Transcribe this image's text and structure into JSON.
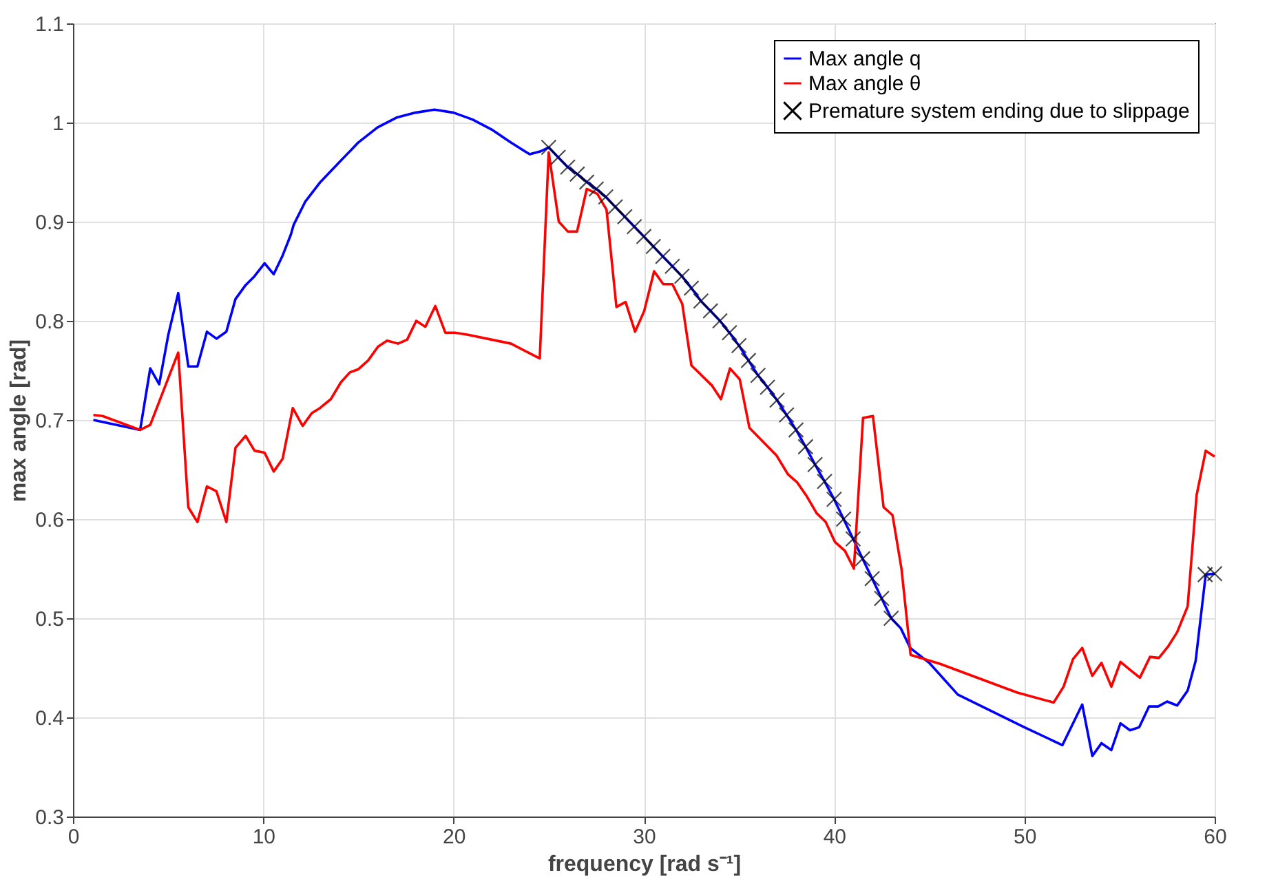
{
  "chart_data": {
    "type": "line",
    "xlabel": "frequency [rad s⁻¹]",
    "ylabel": "max angle [rad]",
    "xlim": [
      0,
      60
    ],
    "xticks": [
      0,
      10,
      20,
      30,
      40,
      50,
      60
    ],
    "ylim": [
      0.3,
      1.1
    ],
    "yticks": [
      0.3,
      0.4,
      0.5,
      0.6,
      0.7,
      0.8,
      0.9,
      1,
      1.1
    ],
    "grid": true,
    "legend": "top right",
    "series": [
      {
        "name": "Max angle q",
        "color": "#0000ff",
        "x": [
          1.07,
          3.53,
          4.06,
          4.53,
          5.01,
          5.53,
          6.06,
          6.54,
          7.04,
          7.54,
          8.06,
          8.54,
          9.07,
          9.54,
          10.07,
          10.55,
          11.02,
          11.45,
          11.6,
          12.2,
          13,
          14,
          15,
          16,
          17,
          18,
          19,
          20,
          21,
          22,
          23,
          24,
          24.58,
          25,
          25.5,
          26,
          26.5,
          27,
          27.5,
          28,
          28.5,
          29,
          29.5,
          30,
          30.5,
          31,
          31.5,
          32,
          32.5,
          33,
          33.5,
          34,
          34.5,
          35,
          35.5,
          36,
          36.5,
          37,
          37.5,
          38,
          38.5,
          39,
          39.5,
          40,
          40.5,
          41,
          41.5,
          42,
          42.5,
          43,
          43.5,
          44,
          45,
          46.5,
          50,
          52,
          53.04,
          53.57,
          54.05,
          54.57,
          55.05,
          55.55,
          56.03,
          56.55,
          57.03,
          57.5,
          58.03,
          58.58,
          59,
          59.53,
          60
        ],
        "values": [
          0.7,
          0.69,
          0.752,
          0.736,
          0.786,
          0.828,
          0.754,
          0.754,
          0.789,
          0.782,
          0.789,
          0.822,
          0.836,
          0.845,
          0.858,
          0.847,
          0.866,
          0.887,
          0.897,
          0.92,
          0.94,
          0.96,
          0.98,
          0.995,
          1.005,
          1.01,
          1.013,
          1.01,
          1.003,
          0.993,
          0.98,
          0.968,
          0.971,
          0.975,
          0.965,
          0.955,
          0.948,
          0.94,
          0.933,
          0.925,
          0.915,
          0.905,
          0.895,
          0.885,
          0.875,
          0.865,
          0.855,
          0.845,
          0.833,
          0.82,
          0.81,
          0.8,
          0.788,
          0.775,
          0.76,
          0.745,
          0.733,
          0.72,
          0.705,
          0.69,
          0.673,
          0.655,
          0.638,
          0.62,
          0.6,
          0.58,
          0.56,
          0.54,
          0.52,
          0.5,
          0.49,
          0.47,
          0.455,
          0.423,
          0.39,
          0.372,
          0.413,
          0.361,
          0.374,
          0.367,
          0.394,
          0.387,
          0.39,
          0.411,
          0.411,
          0.416,
          0.412,
          0.427,
          0.457,
          0.544,
          0.545
        ]
      },
      {
        "name": "Max angle θ",
        "color": "#ff0000",
        "x": [
          1.07,
          1.55,
          3.53,
          4.06,
          5.53,
          6.06,
          6.54,
          7.04,
          7.54,
          8.06,
          8.54,
          9.07,
          9.54,
          10.07,
          10.55,
          11.02,
          11.55,
          12.07,
          12.55,
          12.98,
          13.55,
          14.08,
          14.55,
          14.98,
          15.51,
          16.03,
          16.51,
          17.08,
          17.56,
          18.04,
          18.52,
          19.04,
          19.57,
          20.08,
          20.76,
          23.02,
          24.53,
          25,
          25.53,
          26.01,
          26.49,
          27,
          27.56,
          28.04,
          28.56,
          29.04,
          29.54,
          30.02,
          30.54,
          31.02,
          31.5,
          32.02,
          32.5,
          33.57,
          34.05,
          34.53,
          35.04,
          35.55,
          36.98,
          37.58,
          38.06,
          38.53,
          39.08,
          39.56,
          40.04,
          40.57,
          41.04,
          41.52,
          42.04,
          42.6,
          43.07,
          43.54,
          44.02,
          45.57,
          49.63,
          51.54,
          52.06,
          52.56,
          53.04,
          53.57,
          54.05,
          54.57,
          55.05,
          55.55,
          56.07,
          56.6,
          57.07,
          57.57,
          58.03,
          58.58,
          59.05,
          59.53,
          60
        ],
        "values": [
          0.705,
          0.704,
          0.69,
          0.695,
          0.768,
          0.612,
          0.597,
          0.633,
          0.628,
          0.597,
          0.672,
          0.684,
          0.669,
          0.667,
          0.648,
          0.661,
          0.712,
          0.694,
          0.707,
          0.712,
          0.721,
          0.738,
          0.748,
          0.751,
          0.76,
          0.774,
          0.78,
          0.777,
          0.781,
          0.8,
          0.794,
          0.815,
          0.788,
          0.788,
          0.786,
          0.777,
          0.762,
          0.97,
          0.9,
          0.89,
          0.89,
          0.933,
          0.928,
          0.912,
          0.814,
          0.819,
          0.789,
          0.81,
          0.85,
          0.837,
          0.837,
          0.817,
          0.755,
          0.735,
          0.721,
          0.752,
          0.741,
          0.692,
          0.664,
          0.645,
          0.637,
          0.624,
          0.606,
          0.597,
          0.577,
          0.568,
          0.55,
          0.702,
          0.704,
          0.612,
          0.604,
          0.55,
          0.463,
          0.454,
          0.425,
          0.415,
          0.431,
          0.459,
          0.47,
          0.442,
          0.455,
          0.431,
          0.456,
          0.448,
          0.44,
          0.461,
          0.46,
          0.472,
          0.486,
          0.512,
          0.624,
          0.669,
          0.663
        ]
      },
      {
        "name": "Premature system ending due to slippage",
        "type": "scatter",
        "marker": "cross",
        "color": "#000000",
        "x": [
          25,
          25.5,
          26,
          26.5,
          27,
          27.5,
          28,
          28.5,
          29,
          29.5,
          30,
          30.5,
          31,
          31.5,
          32,
          32.5,
          33,
          33.5,
          34,
          34.5,
          35,
          35.5,
          36,
          36.5,
          37,
          37.5,
          38,
          38.5,
          39,
          39.5,
          40,
          40.5,
          41,
          41.5,
          42,
          42.5,
          43,
          59.5,
          60
        ],
        "values": [
          0.975,
          0.965,
          0.955,
          0.948,
          0.94,
          0.933,
          0.925,
          0.915,
          0.905,
          0.895,
          0.885,
          0.875,
          0.865,
          0.855,
          0.845,
          0.833,
          0.82,
          0.81,
          0.8,
          0.788,
          0.775,
          0.76,
          0.745,
          0.733,
          0.72,
          0.705,
          0.69,
          0.673,
          0.655,
          0.638,
          0.62,
          0.6,
          0.58,
          0.56,
          0.54,
          0.52,
          0.5,
          0.544,
          0.545
        ]
      }
    ]
  }
}
